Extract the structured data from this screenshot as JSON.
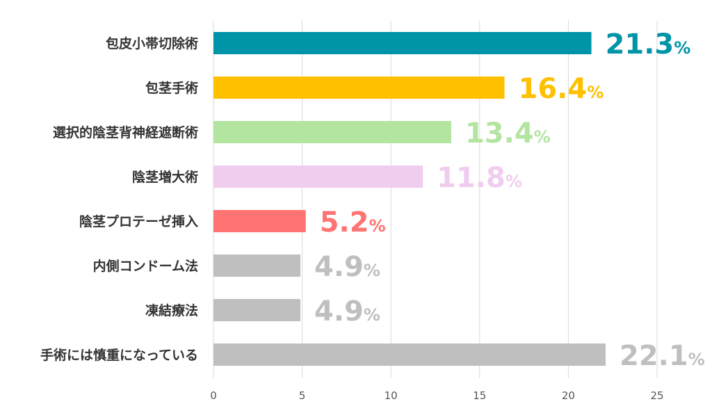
{
  "chart_data": {
    "type": "bar",
    "orientation": "horizontal",
    "categories": [
      "包皮小帯切除術",
      "包茎手術",
      "選択的陰茎背神経遮断術",
      "陰茎増大術",
      "陰茎プロテーゼ挿入",
      "内側コンドーム法",
      "凍結療法",
      "手術には慎重になっている"
    ],
    "values": [
      21.3,
      16.4,
      13.4,
      11.8,
      5.2,
      4.9,
      4.9,
      22.1
    ],
    "value_labels": [
      "21.3",
      "16.4",
      "13.4",
      "11.8",
      "5.2",
      "4.9",
      "4.9",
      "22.1"
    ],
    "value_unit": "%",
    "colors": [
      "#0094a8",
      "#ffc000",
      "#b3e4a0",
      "#f0cdef",
      "#ff7373",
      "#bfbfbf",
      "#bfbfbf",
      "#bfbfbf"
    ],
    "label_colors": [
      "#0094a8",
      "#ffc000",
      "#b3e4a0",
      "#f0cdef",
      "#ff7373",
      "#bfbfbf",
      "#bfbfbf",
      "#bfbfbf"
    ],
    "xlim": [
      0,
      25
    ],
    "xticks": [
      "0",
      "5",
      "10",
      "15",
      "20",
      "25"
    ],
    "grid": "vertical",
    "title": "",
    "xlabel": "",
    "ylabel": ""
  }
}
